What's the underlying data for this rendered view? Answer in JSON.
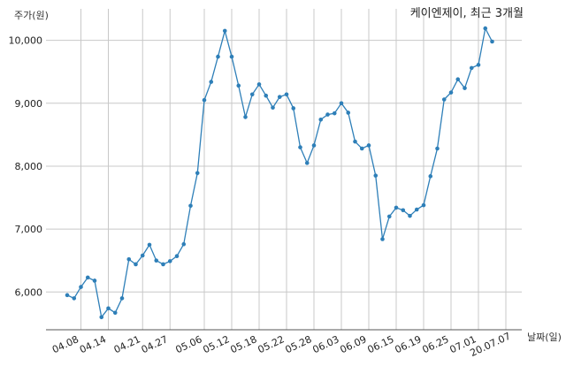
{
  "chart_data": {
    "type": "line",
    "title": "케이엔제이, 최근 3개월",
    "xlabel": "날짜(일)",
    "ylabel": "주가(원)",
    "ylim": [
      5400,
      10500
    ],
    "yticks": [
      6000,
      7000,
      8000,
      9000,
      10000
    ],
    "ytick_labels": [
      "6,000",
      "7,000",
      "8,000",
      "9,000",
      "10,000"
    ],
    "grid": true,
    "series_color": "#2e7fb8",
    "xtick_labels": [
      "04.08",
      "04.14",
      "04.21",
      "04.27",
      "05.06",
      "05.12",
      "05.18",
      "05.22",
      "05.28",
      "06.03",
      "06.09",
      "06.15",
      "06.19",
      "06.25",
      "07.01",
      "20.07.07"
    ],
    "xtick_index": [
      2,
      6,
      11,
      15,
      20,
      24,
      28,
      32,
      36,
      40,
      44,
      48,
      52,
      56,
      60,
      64
    ],
    "series": [
      {
        "values": [
          5950,
          5900,
          6080,
          6230,
          6180,
          5600,
          5740,
          5670,
          5900,
          6520,
          6440,
          6580,
          6750,
          6500,
          6440,
          6490,
          6570,
          6760,
          7370,
          7890,
          9050,
          9340,
          9740,
          10150,
          9740,
          9280,
          8780,
          9140,
          9300,
          9120,
          8930,
          9100,
          9140,
          8920,
          8300,
          8050,
          8330,
          8740,
          8820,
          8840,
          9000,
          8850,
          8390,
          8280,
          8330,
          7850,
          6840,
          7200,
          7340,
          7300,
          7210,
          7310,
          7380,
          7840,
          8280,
          9060,
          9170,
          9380,
          9240,
          9560,
          9610,
          10190,
          9980
        ]
      }
    ]
  }
}
